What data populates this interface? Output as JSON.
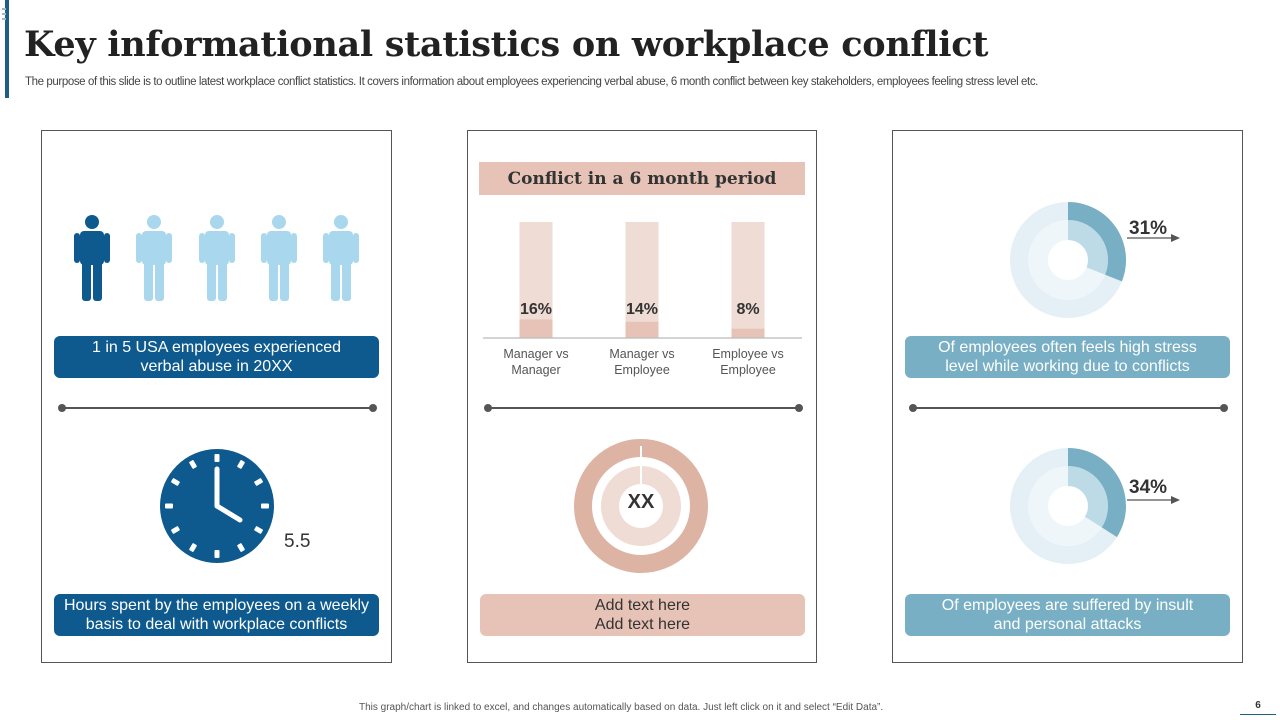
{
  "header": {
    "title": "Key informational statistics on workplace conflict",
    "subtitle": "The purpose of this slide is to outline latest workplace conflict statistics. It covers information about employees experiencing verbal abuse, 6 month conflict between key stakeholders, employees feeling stress level etc."
  },
  "colors": {
    "dark_blue": "#0e5a8e",
    "light_blue": "#a9d7ee",
    "teal": "#78afc4",
    "peach": "#e6c3b6",
    "peach_dark": "#d9a998"
  },
  "left_panel": {
    "people_icons": [
      "person-highlighted-icon",
      "person-icon",
      "person-icon",
      "person-icon",
      "person-icon"
    ],
    "people_highlighted": 1,
    "people_total": 5,
    "caption_top": [
      "1 in 5 USA employees experienced",
      "verbal abuse in 20XX"
    ],
    "clock_icon": "clock-icon",
    "clock_value": "5.5",
    "caption_bottom": [
      "Hours spent by the employees on a weekly",
      "basis to deal with workplace conflicts"
    ]
  },
  "middle_panel": {
    "caption_bottom": [
      "Add text here",
      "Add text here"
    ],
    "donut_center_label": "XX"
  },
  "right_panel": {
    "top_percent": "31%",
    "caption_top": [
      "Of employees often feels high stress",
      "level while working due to conflicts"
    ],
    "bottom_percent": "34%",
    "caption_bottom": [
      "Of employees are suffered by insult",
      "and personal attacks"
    ]
  },
  "chart_data": [
    {
      "type": "bar",
      "title": "Conflict in a 6 month period",
      "categories": [
        [
          "Manager vs",
          "Manager"
        ],
        [
          "Manager vs",
          "Employee"
        ],
        [
          "Employee vs",
          "Employee"
        ]
      ],
      "values": [
        16,
        14,
        8
      ],
      "data_labels": [
        "16%",
        "14%",
        "8%"
      ],
      "ylim": [
        0,
        100
      ],
      "grid": false
    },
    {
      "type": "pie",
      "series": [
        {
          "values": [
            31,
            69
          ]
        }
      ],
      "data_labels": [
        "31%"
      ]
    },
    {
      "type": "pie",
      "series": [
        {
          "values": [
            34,
            66
          ]
        }
      ],
      "data_labels": [
        "34%"
      ]
    }
  ],
  "footer": {
    "note": "This graph/chart is linked to excel, and changes automatically based on data. Just left click on it and select “Edit Data”.",
    "page_number": "6"
  }
}
